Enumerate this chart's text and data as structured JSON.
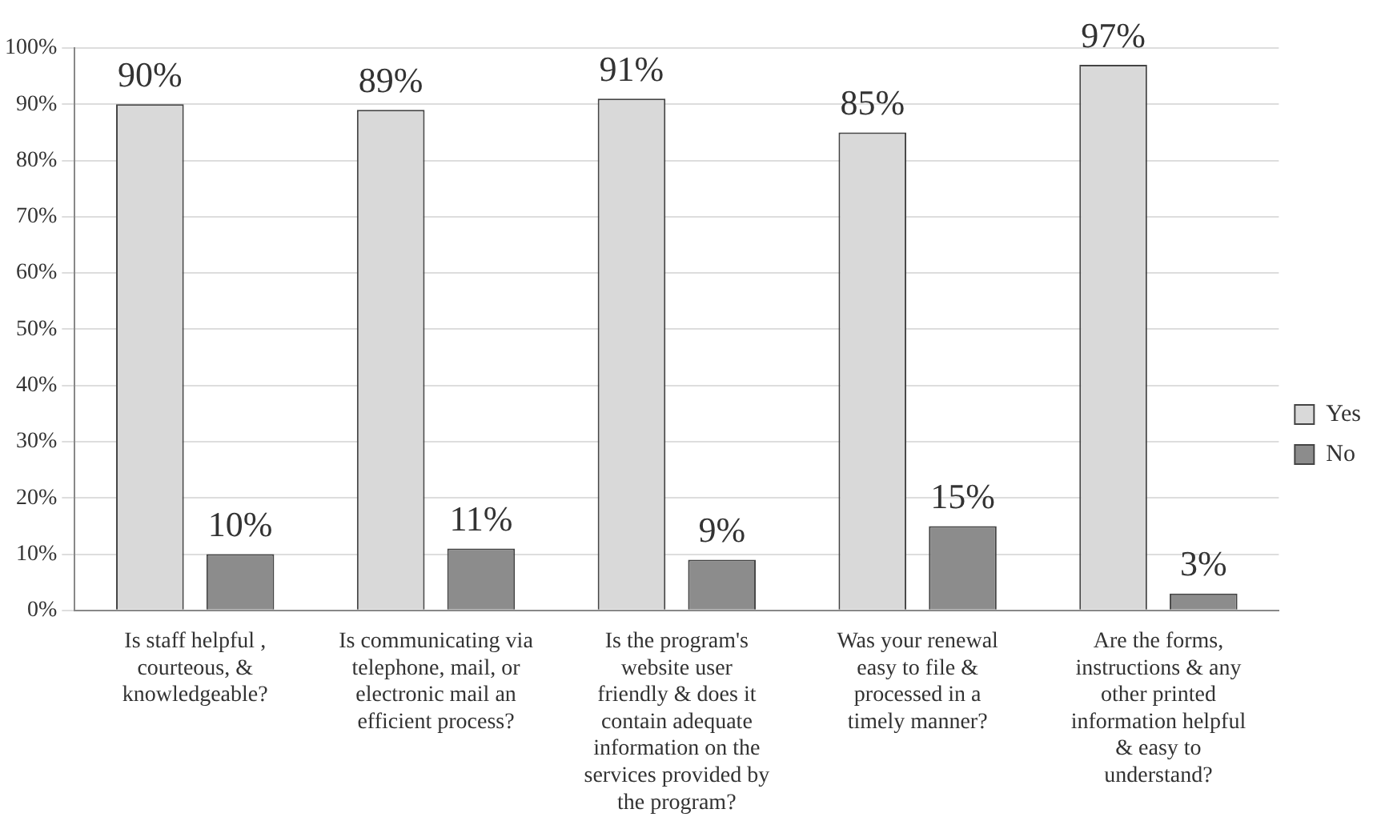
{
  "chart_data": {
    "type": "bar",
    "categories": [
      "Is staff helpful , courteous, & knowledgeable?",
      "Is communicating via telephone, mail, or electronic mail an efficient process?",
      "Is the program's website user friendly & does it contain adequate information on the services provided by the program?",
      "Was your renewal easy to file & processed in a timely manner?",
      "Are the forms, instructions & any other printed information helpful & easy to understand?"
    ],
    "series": [
      {
        "name": "Yes",
        "color": "#d9d9d9",
        "values": [
          90,
          89,
          91,
          85,
          97
        ],
        "value_labels": [
          "90%",
          "89%",
          "91%",
          "85%",
          "97%"
        ]
      },
      {
        "name": "No",
        "color": "#8c8c8c",
        "values": [
          10,
          11,
          9,
          15,
          3
        ],
        "value_labels": [
          "10%",
          "11%",
          "9%",
          "15%",
          "3%"
        ]
      }
    ],
    "ylim": [
      0,
      100
    ],
    "yticks": [
      {
        "value": 0,
        "label": "0%"
      },
      {
        "value": 10,
        "label": "10%"
      },
      {
        "value": 20,
        "label": "20%"
      },
      {
        "value": 30,
        "label": "30%"
      },
      {
        "value": 40,
        "label": "40%"
      },
      {
        "value": 50,
        "label": "50%"
      },
      {
        "value": 60,
        "label": "60%"
      },
      {
        "value": 70,
        "label": "70%"
      },
      {
        "value": 80,
        "label": "80%"
      },
      {
        "value": 90,
        "label": "90%"
      },
      {
        "value": 100,
        "label": "100%"
      }
    ],
    "grid": "y",
    "legend": "right"
  }
}
